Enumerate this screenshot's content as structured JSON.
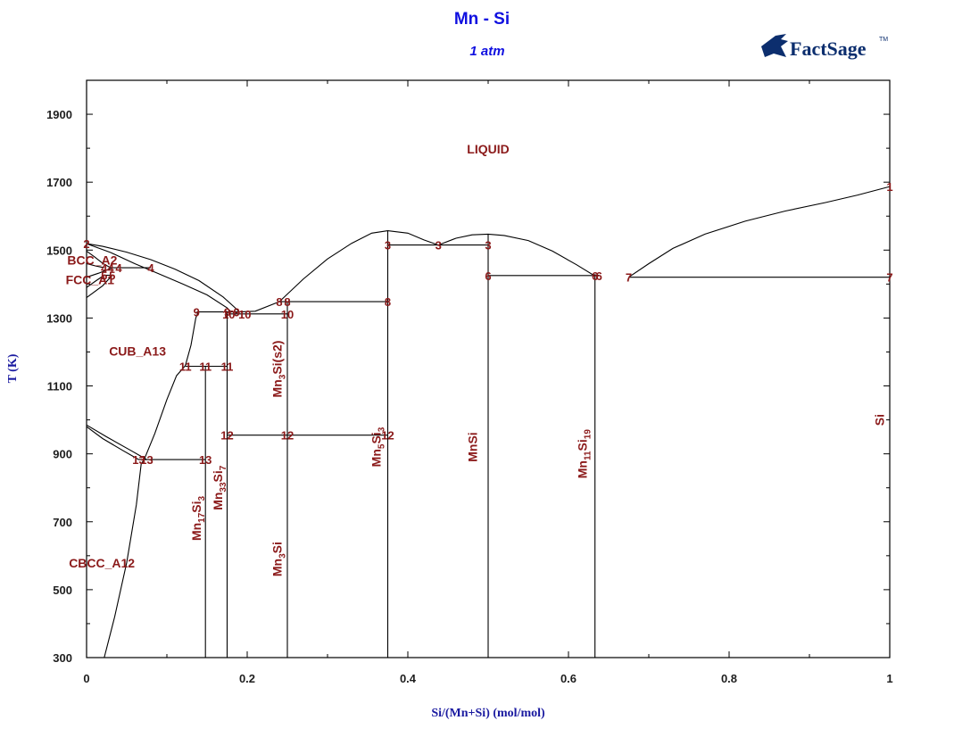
{
  "chart_data": {
    "type": "line",
    "title": "Mn - Si",
    "subtitle": "1 atm",
    "xlabel": "Si/(Mn+Si) (mol/mol)",
    "ylabel": "T (K)",
    "xlim": [
      0,
      1
    ],
    "ylim": [
      300,
      2000
    ],
    "x_ticks": [
      0,
      0.2,
      0.4,
      0.6,
      0.8,
      1
    ],
    "x_tick_labels": [
      "0",
      "0.2",
      "0.4",
      "0.6",
      "0.8",
      "1"
    ],
    "y_ticks": [
      300,
      500,
      700,
      900,
      1100,
      1300,
      1500,
      1700,
      1900
    ],
    "y_tick_labels": [
      "300",
      "500",
      "700",
      "900",
      "1100",
      "1300",
      "1500",
      "1700",
      "1900"
    ],
    "grid": false,
    "logo": "FactSage",
    "phase_labels": [
      {
        "text": "LIQUID",
        "x": 0.5,
        "y": 1785,
        "anchor": "middle"
      },
      {
        "text": "BCC_A2",
        "x": -0.024,
        "y": 1458,
        "anchor": "start"
      },
      {
        "text": "FCC_A1",
        "x": -0.026,
        "y": 1400,
        "anchor": "start"
      },
      {
        "text": "CUB_A13",
        "x": 0.028,
        "y": 1190,
        "anchor": "start"
      },
      {
        "text": "CBCC_A12",
        "x": -0.022,
        "y": 565,
        "anchor": "start"
      }
    ],
    "compounds": [
      {
        "main": "Mn",
        "parts": [
          {
            "s": "17",
            "sub": true
          },
          {
            "s": "Si",
            "sub": false
          },
          {
            "s": "3",
            "sub": true
          }
        ],
        "x": 0.142,
        "y": 710
      },
      {
        "main": "Mn",
        "parts": [
          {
            "s": "33",
            "sub": true
          },
          {
            "s": "Si",
            "sub": false
          },
          {
            "s": "7",
            "sub": true
          }
        ],
        "x": 0.169,
        "y": 800
      },
      {
        "main": "Mn",
        "parts": [
          {
            "s": "3",
            "sub": true
          },
          {
            "s": "Si(s2)",
            "sub": false
          }
        ],
        "x": 0.243,
        "y": 1150
      },
      {
        "main": "Mn",
        "parts": [
          {
            "s": "3",
            "sub": true
          },
          {
            "s": "Si",
            "sub": false
          }
        ],
        "x": 0.243,
        "y": 590
      },
      {
        "main": "Mn",
        "parts": [
          {
            "s": "5",
            "sub": true
          },
          {
            "s": "Si",
            "sub": false
          },
          {
            "s": "3",
            "sub": true
          }
        ],
        "x": 0.366,
        "y": 920
      },
      {
        "main": "MnSi",
        "parts": [],
        "x": 0.486,
        "y": 920
      },
      {
        "main": "Mn",
        "parts": [
          {
            "s": "11",
            "sub": true
          },
          {
            "s": "Si",
            "sub": false
          },
          {
            "s": "19",
            "sub": true
          }
        ],
        "x": 0.623,
        "y": 900
      },
      {
        "main": "Si",
        "parts": [],
        "x": 0.993,
        "y": 1000
      }
    ],
    "point_labels": [
      {
        "t": "1",
        "x": 1.0,
        "y": 1687
      },
      {
        "t": "2",
        "x": 0.0,
        "y": 1519
      },
      {
        "t": "3",
        "x": 0.375,
        "y": 1515
      },
      {
        "t": "3",
        "x": 0.438,
        "y": 1515
      },
      {
        "t": "3",
        "x": 0.5,
        "y": 1515
      },
      {
        "t": "4",
        "x": 0.022,
        "y": 1448
      },
      {
        "t": "4",
        "x": 0.03,
        "y": 1448
      },
      {
        "t": "4",
        "x": 0.04,
        "y": 1448
      },
      {
        "t": "4",
        "x": 0.08,
        "y": 1448
      },
      {
        "t": "5",
        "x": 0.022,
        "y": 1426
      },
      {
        "t": "5",
        "x": 0.032,
        "y": 1426
      },
      {
        "t": "6",
        "x": 0.5,
        "y": 1425
      },
      {
        "t": "6",
        "x": 0.633,
        "y": 1425
      },
      {
        "t": "6",
        "x": 0.638,
        "y": 1425
      },
      {
        "t": "7",
        "x": 0.675,
        "y": 1420
      },
      {
        "t": "7",
        "x": 1.0,
        "y": 1420
      },
      {
        "t": "8",
        "x": 0.24,
        "y": 1348
      },
      {
        "t": "8",
        "x": 0.25,
        "y": 1348
      },
      {
        "t": "8",
        "x": 0.375,
        "y": 1348
      },
      {
        "t": "9",
        "x": 0.137,
        "y": 1318
      },
      {
        "t": "9",
        "x": 0.175,
        "y": 1318
      },
      {
        "t": "9",
        "x": 0.187,
        "y": 1318
      },
      {
        "t": "10",
        "x": 0.177,
        "y": 1312
      },
      {
        "t": "10",
        "x": 0.197,
        "y": 1312
      },
      {
        "t": "10",
        "x": 0.25,
        "y": 1312
      },
      {
        "t": "11",
        "x": 0.123,
        "y": 1158
      },
      {
        "t": "11",
        "x": 0.148,
        "y": 1158
      },
      {
        "t": "11",
        "x": 0.175,
        "y": 1158
      },
      {
        "t": "12",
        "x": 0.175,
        "y": 955
      },
      {
        "t": "12",
        "x": 0.25,
        "y": 955
      },
      {
        "t": "12",
        "x": 0.375,
        "y": 955
      },
      {
        "t": "13",
        "x": 0.065,
        "y": 883
      },
      {
        "t": "13",
        "x": 0.075,
        "y": 883
      },
      {
        "t": "13",
        "x": 0.148,
        "y": 883
      }
    ],
    "lines": [
      [
        [
          0,
          1519
        ],
        [
          0.02,
          1511
        ],
        [
          0.05,
          1494
        ],
        [
          0.08,
          1472
        ],
        [
          0.11,
          1444
        ],
        [
          0.14,
          1410
        ],
        [
          0.17,
          1362
        ],
        [
          0.185,
          1330
        ],
        [
          0.19,
          1318
        ]
      ],
      [
        [
          0,
          1519
        ],
        [
          0.03,
          1493
        ],
        [
          0.06,
          1460
        ],
        [
          0.09,
          1430
        ],
        [
          0.12,
          1400
        ],
        [
          0.15,
          1368
        ],
        [
          0.175,
          1330
        ],
        [
          0.18,
          1318
        ]
      ],
      [
        [
          0.19,
          1318
        ],
        [
          0.21,
          1320
        ],
        [
          0.24,
          1348
        ]
      ],
      [
        [
          0.24,
          1348
        ],
        [
          0.27,
          1415
        ],
        [
          0.3,
          1474
        ],
        [
          0.33,
          1520
        ],
        [
          0.355,
          1550
        ],
        [
          0.375,
          1557
        ],
        [
          0.4,
          1550
        ],
        [
          0.42,
          1530
        ],
        [
          0.438,
          1515
        ]
      ],
      [
        [
          0.438,
          1515
        ],
        [
          0.46,
          1535
        ],
        [
          0.48,
          1545
        ],
        [
          0.5,
          1547
        ],
        [
          0.52,
          1543
        ],
        [
          0.55,
          1528
        ],
        [
          0.58,
          1497
        ],
        [
          0.61,
          1457
        ],
        [
          0.63,
          1428
        ],
        [
          0.638,
          1425
        ]
      ],
      [
        [
          0.675,
          1420
        ],
        [
          0.7,
          1460
        ],
        [
          0.73,
          1505
        ],
        [
          0.77,
          1547
        ],
        [
          0.82,
          1585
        ],
        [
          0.87,
          1615
        ],
        [
          0.92,
          1640
        ],
        [
          0.96,
          1662
        ],
        [
          1.0,
          1687
        ]
      ],
      [
        [
          0,
          1497
        ],
        [
          0.01,
          1480
        ],
        [
          0.02,
          1461
        ],
        [
          0.03,
          1448
        ]
      ],
      [
        [
          0,
          1460
        ],
        [
          0.012,
          1453
        ],
        [
          0.022,
          1448
        ]
      ],
      [
        [
          0,
          1420
        ],
        [
          0.015,
          1432
        ],
        [
          0.032,
          1448
        ]
      ],
      [
        [
          0,
          1390
        ],
        [
          0.012,
          1410
        ],
        [
          0.022,
          1426
        ]
      ],
      [
        [
          0,
          1360
        ],
        [
          0.02,
          1395
        ],
        [
          0.032,
          1426
        ]
      ],
      [
        [
          0,
          980
        ],
        [
          0.02,
          945
        ],
        [
          0.045,
          910
        ],
        [
          0.065,
          883
        ]
      ],
      [
        [
          0,
          985
        ],
        [
          0.025,
          950
        ],
        [
          0.055,
          910
        ],
        [
          0.075,
          883
        ]
      ],
      [
        [
          0.022,
          300
        ],
        [
          0.035,
          420
        ],
        [
          0.05,
          580
        ],
        [
          0.062,
          750
        ],
        [
          0.068,
          870
        ],
        [
          0.072,
          885
        ],
        [
          0.085,
          960
        ],
        [
          0.1,
          1060
        ],
        [
          0.112,
          1130
        ],
        [
          0.123,
          1160
        ],
        [
          0.13,
          1220
        ],
        [
          0.136,
          1300
        ],
        [
          0.139,
          1318
        ]
      ],
      [
        [
          0.03,
          1448
        ],
        [
          0.08,
          1448
        ]
      ],
      [
        [
          0.022,
          1426
        ],
        [
          0.032,
          1426
        ]
      ],
      [
        [
          0.065,
          883
        ],
        [
          0.148,
          883
        ]
      ],
      [
        [
          0.123,
          1158
        ],
        [
          0.175,
          1158
        ]
      ],
      [
        [
          0.137,
          1318
        ],
        [
          0.19,
          1318
        ]
      ],
      [
        [
          0.177,
          1312
        ],
        [
          0.25,
          1312
        ]
      ],
      [
        [
          0.175,
          955
        ],
        [
          0.375,
          955
        ]
      ],
      [
        [
          0.24,
          1348
        ],
        [
          0.375,
          1348
        ]
      ],
      [
        [
          0.375,
          1515
        ],
        [
          0.5,
          1515
        ]
      ],
      [
        [
          0.5,
          1425
        ],
        [
          0.638,
          1425
        ]
      ],
      [
        [
          0.675,
          1420
        ],
        [
          1.0,
          1420
        ]
      ],
      [
        [
          0.148,
          300
        ],
        [
          0.148,
          1158
        ]
      ],
      [
        [
          0.175,
          300
        ],
        [
          0.175,
          1318
        ]
      ],
      [
        [
          0.25,
          300
        ],
        [
          0.25,
          1348
        ]
      ],
      [
        [
          0.375,
          300
        ],
        [
          0.375,
          1557
        ]
      ],
      [
        [
          0.5,
          300
        ],
        [
          0.5,
          1547
        ]
      ],
      [
        [
          0.633,
          300
        ],
        [
          0.633,
          1428
        ]
      ]
    ]
  }
}
